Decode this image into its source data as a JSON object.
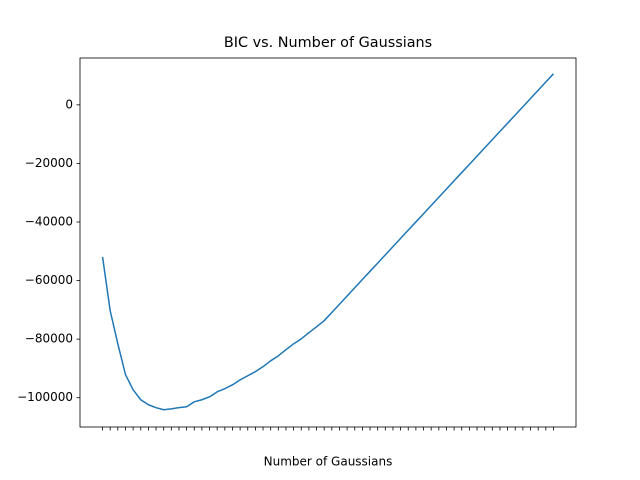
{
  "chart_data": {
    "type": "line",
    "title": "BIC vs. Number of Gaussians",
    "x_label": "Number of Gaussians",
    "categories": [
      null,
      null,
      null,
      null,
      null,
      null,
      null,
      null,
      null,
      null,
      null,
      null,
      null,
      null,
      null,
      null,
      null,
      null,
      null,
      null,
      null,
      null,
      null,
      null,
      null,
      null,
      null,
      null,
      null,
      null,
      null,
      null,
      null,
      null,
      null,
      null,
      null,
      null,
      null,
      null,
      null,
      null,
      null,
      null,
      null,
      null,
      null,
      null,
      null,
      null,
      null,
      null,
      null,
      null,
      null,
      null,
      null,
      null,
      null,
      null
    ],
    "series": [
      {
        "name": "BIC",
        "color": "#1f77b4",
        "values": [
          -51900,
          -70300,
          -81600,
          -92100,
          -97300,
          -100700,
          -102400,
          -103400,
          -104100,
          -103800,
          -103400,
          -103100,
          -101400,
          -100700,
          -99700,
          -98000,
          -96900,
          -95600,
          -93900,
          -92500,
          -91100,
          -89400,
          -87400,
          -85700,
          -83600,
          -81600,
          -79900,
          -77800,
          -75800,
          -73700,
          -70890,
          -68080,
          -65270,
          -62460,
          -59650,
          -56840,
          -54030,
          -51220,
          -48410,
          -45600,
          -42790,
          -39980,
          -37170,
          -34360,
          -31550,
          -28740,
          -25930,
          -23120,
          -20310,
          -17500,
          -14690,
          -11880,
          -9070,
          -6260,
          -3450,
          -640,
          2170,
          4980,
          7790,
          10600
        ]
      }
    ],
    "ylim": [
      -110000,
      16000
    ],
    "yticks": [
      {
        "value": -100000,
        "label": "−100000"
      },
      {
        "value": -80000,
        "label": "−80000"
      },
      {
        "value": -60000,
        "label": "−60000"
      },
      {
        "value": -40000,
        "label": "−40000"
      },
      {
        "value": -20000,
        "label": "−20000"
      },
      0
    ]
  }
}
